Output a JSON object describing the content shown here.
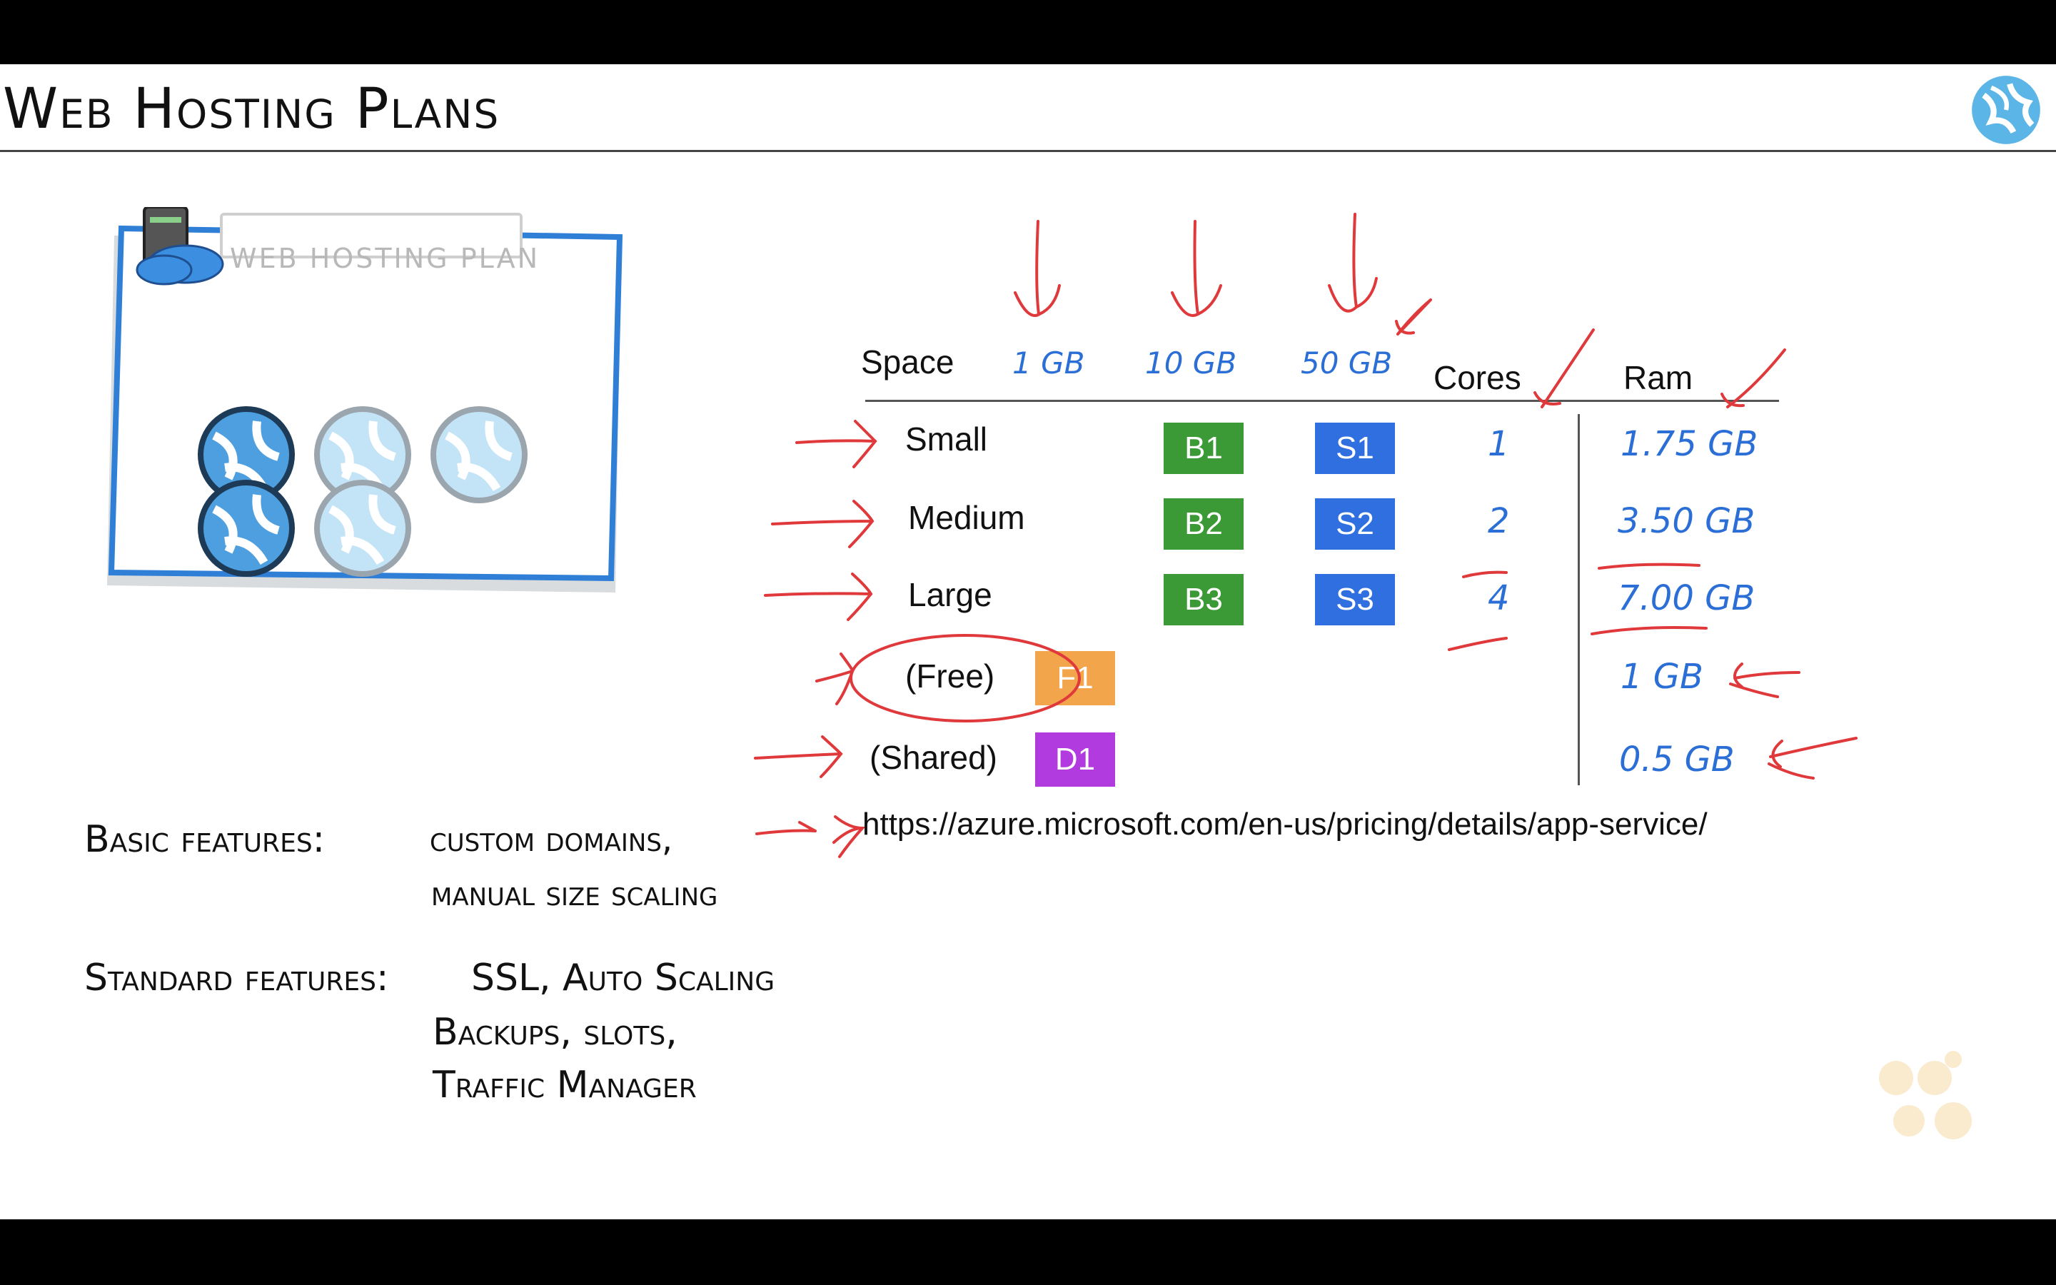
{
  "slide": {
    "title": "Web Hosting Plans",
    "illustration_label": "WEB HOSTING PLAN"
  },
  "pricing_table": {
    "space_header": "Space",
    "space_values": [
      "1 GB",
      "10 GB",
      "50 GB"
    ],
    "cores_header": "Cores",
    "ram_header": "Ram",
    "rows": [
      {
        "size": "Small",
        "basic": "B1",
        "standard": "S1",
        "cores": "1",
        "ram": "1.75 GB"
      },
      {
        "size": "Medium",
        "basic": "B2",
        "standard": "S2",
        "cores": "2",
        "ram": "3.50 GB"
      },
      {
        "size": "Large",
        "basic": "B3",
        "standard": "S3",
        "cores": "4",
        "ram": "7.00 GB"
      }
    ],
    "free": {
      "label": "(Free)",
      "tier": "F1",
      "ram": "1 GB"
    },
    "shared": {
      "label": "(Shared)",
      "tier": "D1",
      "ram": "0.5 GB"
    },
    "colors": {
      "basic": "#3c9a36",
      "standard": "#2f6fe0",
      "free": "#f2a54a",
      "shared": "#b23be0",
      "annotation": "#e0393b",
      "handwriting_blue": "#2b6fd6"
    }
  },
  "url": "https://azure.microsoft.com/en-us/pricing/details/app-service/",
  "features": {
    "basic_label": "Basic features:",
    "basic_line1": "custom domains,",
    "basic_line2": "manual size scaling",
    "standard_label": "Standard features:",
    "standard_line1": "SSL, Auto Scaling",
    "standard_line2": "Backups, slots,",
    "standard_line3": "Traffic Manager"
  },
  "icons": {
    "logo": "azure-globe-icon",
    "server": "server-cloud-icon",
    "website": "website-globe-icon"
  }
}
